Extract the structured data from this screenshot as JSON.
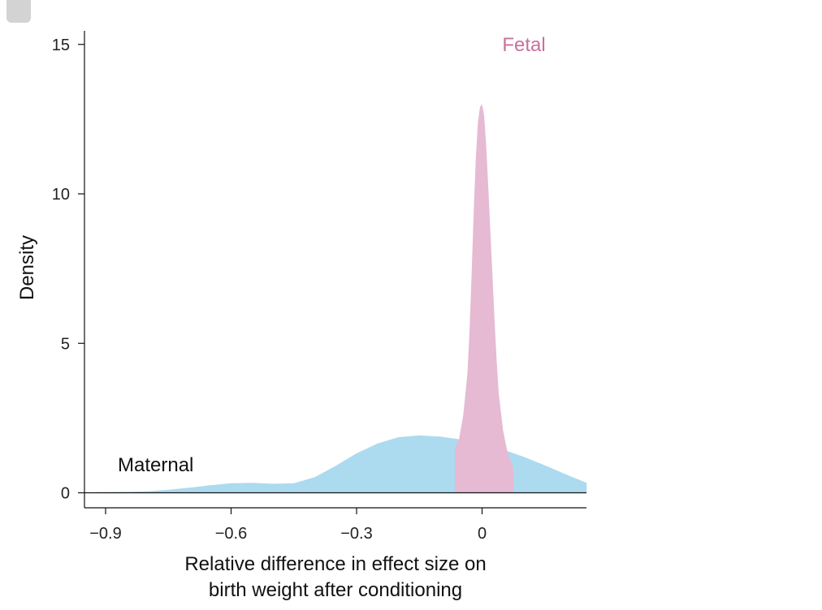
{
  "chart_data": {
    "type": "area",
    "title": "",
    "xlabel_lines": [
      "Relative difference in effect size on",
      "birth weight after conditioning"
    ],
    "ylabel": "Density",
    "xlim": [
      -0.92,
      0.25
    ],
    "ylim": [
      -0.5,
      15.5
    ],
    "xticks": [
      -0.9,
      -0.6,
      -0.3,
      0
    ],
    "xtick_labels": [
      "−0.9",
      "−0.6",
      "−0.3",
      "0"
    ],
    "yticks": [
      0,
      5,
      10,
      15
    ],
    "ytick_labels": [
      "0",
      "5",
      "10",
      "15"
    ],
    "grid": false,
    "series": [
      {
        "name": "Fetal",
        "label": "Fetal",
        "color": "#e6bad3",
        "label_color": "#c8709e",
        "x": [
          -0.065,
          -0.055,
          -0.045,
          -0.035,
          -0.03,
          -0.025,
          -0.02,
          -0.015,
          -0.01,
          -0.005,
          0.0,
          0.005,
          0.01,
          0.015,
          0.02,
          0.025,
          0.03,
          0.035,
          0.04,
          0.05,
          0.06,
          0.065,
          0.07,
          0.075
        ],
        "y": [
          1.5,
          1.8,
          2.6,
          4.0,
          5.4,
          7.3,
          9.4,
          11.2,
          12.4,
          12.9,
          13.0,
          12.6,
          11.6,
          10.2,
          8.7,
          7.2,
          5.7,
          4.4,
          3.3,
          2.1,
          1.4,
          1.2,
          1.0,
          0.8
        ]
      },
      {
        "name": "Maternal",
        "label": "Maternal",
        "color": "#acdaef",
        "label_color": "#111111",
        "x": [
          -0.92,
          -0.85,
          -0.8,
          -0.75,
          -0.7,
          -0.65,
          -0.6,
          -0.55,
          -0.5,
          -0.45,
          -0.4,
          -0.35,
          -0.3,
          -0.25,
          -0.2,
          -0.15,
          -0.1,
          -0.05,
          0.0,
          0.05,
          0.1,
          0.15,
          0.2,
          0.25
        ],
        "y": [
          0.02,
          0.03,
          0.05,
          0.1,
          0.17,
          0.25,
          0.32,
          0.33,
          0.3,
          0.32,
          0.52,
          0.9,
          1.32,
          1.65,
          1.86,
          1.92,
          1.88,
          1.78,
          1.65,
          1.45,
          1.2,
          0.92,
          0.62,
          0.33
        ]
      }
    ]
  }
}
